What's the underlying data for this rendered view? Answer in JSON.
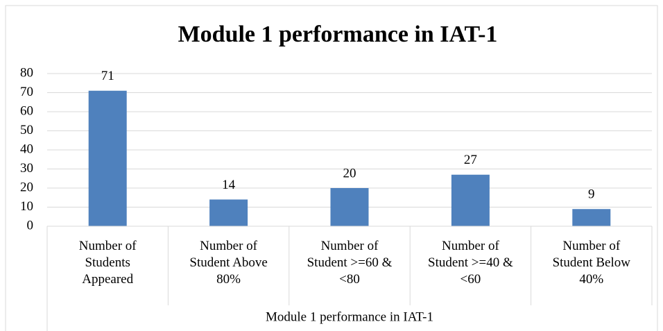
{
  "chart_data": {
    "type": "bar",
    "title": "Module 1 performance in IAT-1",
    "categories": [
      "Number of Students Appeared",
      "Number of Student Above 80%",
      "Number of Student >=60 & <80",
      "Number of Student >=40 & <60",
      "Number of Student Below 40%"
    ],
    "values": [
      71,
      14,
      20,
      27,
      9
    ],
    "color": "#4f81bd",
    "xlabel": "Module 1 performance in IAT-1",
    "ylim": [
      0,
      80
    ],
    "yticks": [
      0,
      10,
      20,
      30,
      40,
      50,
      60,
      70,
      80
    ],
    "grid": true
  }
}
